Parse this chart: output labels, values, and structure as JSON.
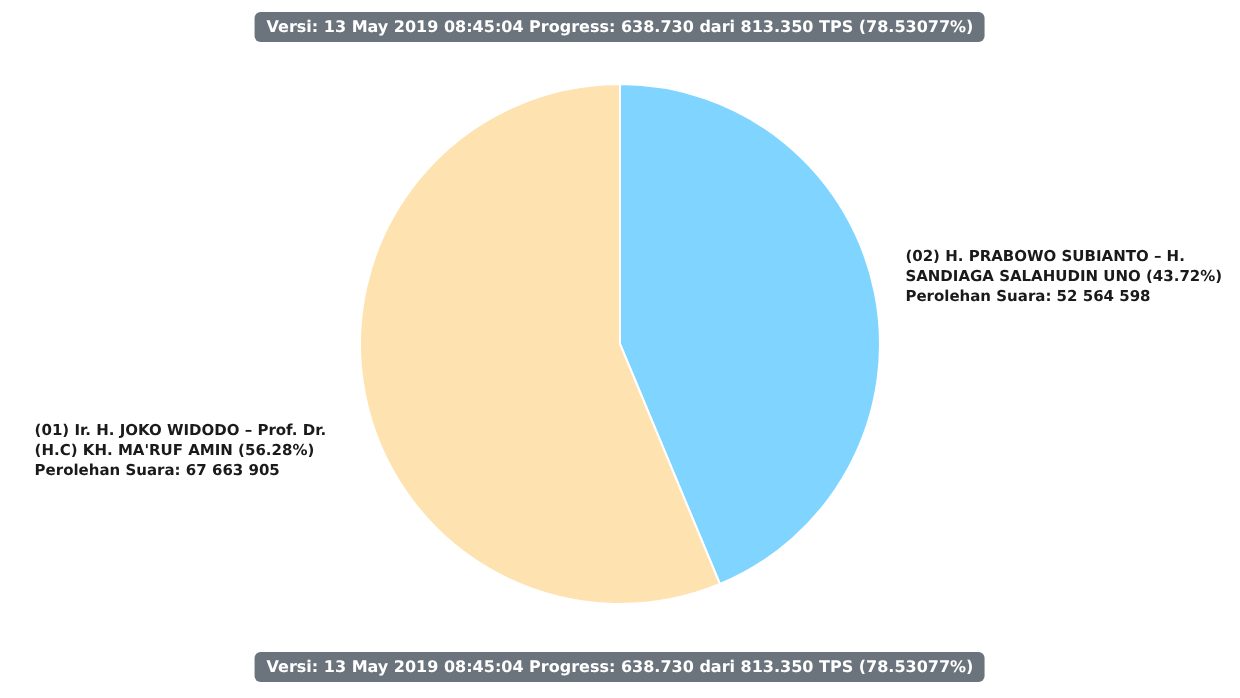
{
  "chart_data": {
    "type": "pie",
    "categories": [
      "(02) H. PRABOWO SUBIANTO – H. SANDIAGA SALAHUDIN UNO (43.72%)",
      "(01) Ir. H. JOKO WIDODO – Prof. Dr. (H.C) KH. MA'RUF AMIN (56.28%)"
    ],
    "values": [
      52564598,
      67663905
    ],
    "value_labels": [
      "Perolehan Suara: 52 564 598",
      "Perolehan Suara: 67 663 905"
    ],
    "colors": [
      "#7fd5ff",
      "#fee3b0"
    ],
    "annotations": [
      "Versi: 13 May 2019 08:45:04 Progress: 638.730 dari 813.350 TPS (78.53077%)",
      "Versi: 13 May 2019 08:45:04 Progress: 638.730 dari 813.350 TPS (78.53077%)"
    ]
  }
}
